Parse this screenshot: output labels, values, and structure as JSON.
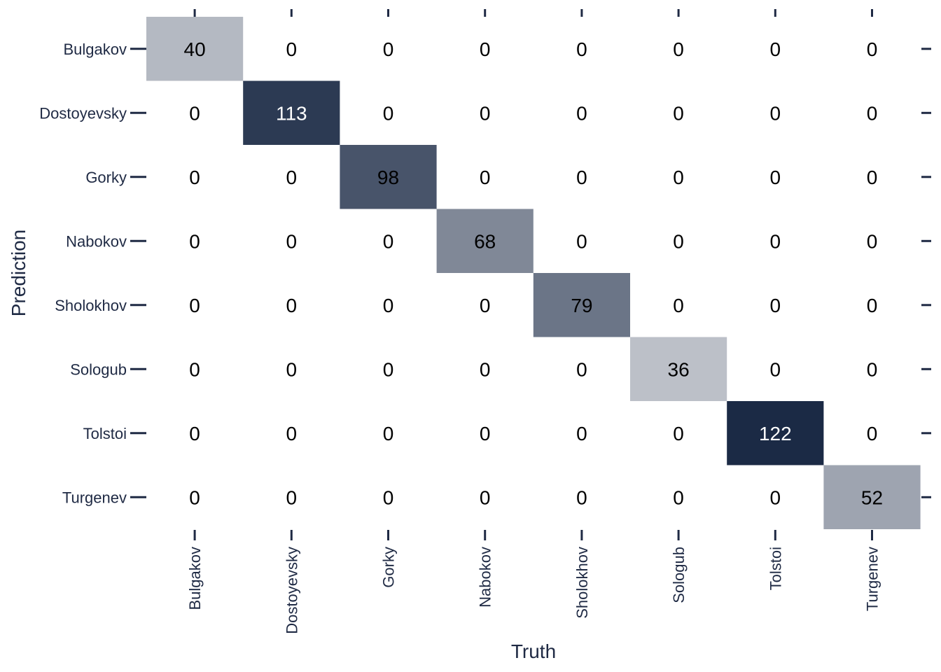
{
  "chart_data": {
    "type": "heatmap",
    "title": "",
    "xlabel": "Truth",
    "ylabel": "Prediction",
    "x_categories": [
      "Bulgakov",
      "Dostoyevsky",
      "Gorky",
      "Nabokov",
      "Sholokhov",
      "Sologub",
      "Tolstoi",
      "Turgenev"
    ],
    "y_categories": [
      "Bulgakov",
      "Dostoyevsky",
      "Gorky",
      "Nabokov",
      "Sholokhov",
      "Sologub",
      "Tolstoi",
      "Turgenev"
    ],
    "values": [
      [
        40,
        0,
        0,
        0,
        0,
        0,
        0,
        0
      ],
      [
        0,
        113,
        0,
        0,
        0,
        0,
        0,
        0
      ],
      [
        0,
        0,
        98,
        0,
        0,
        0,
        0,
        0
      ],
      [
        0,
        0,
        0,
        68,
        0,
        0,
        0,
        0
      ],
      [
        0,
        0,
        0,
        0,
        79,
        0,
        0,
        0
      ],
      [
        0,
        0,
        0,
        0,
        0,
        36,
        0,
        0
      ],
      [
        0,
        0,
        0,
        0,
        0,
        0,
        122,
        0
      ],
      [
        0,
        0,
        0,
        0,
        0,
        0,
        0,
        52
      ]
    ],
    "colors": {
      "low": "#ffffff",
      "high": "#1b2a45",
      "text_dark": "#000000",
      "text_light": "#ffffff",
      "axis": "#1f2a44"
    },
    "legend": "none",
    "grid": false
  }
}
